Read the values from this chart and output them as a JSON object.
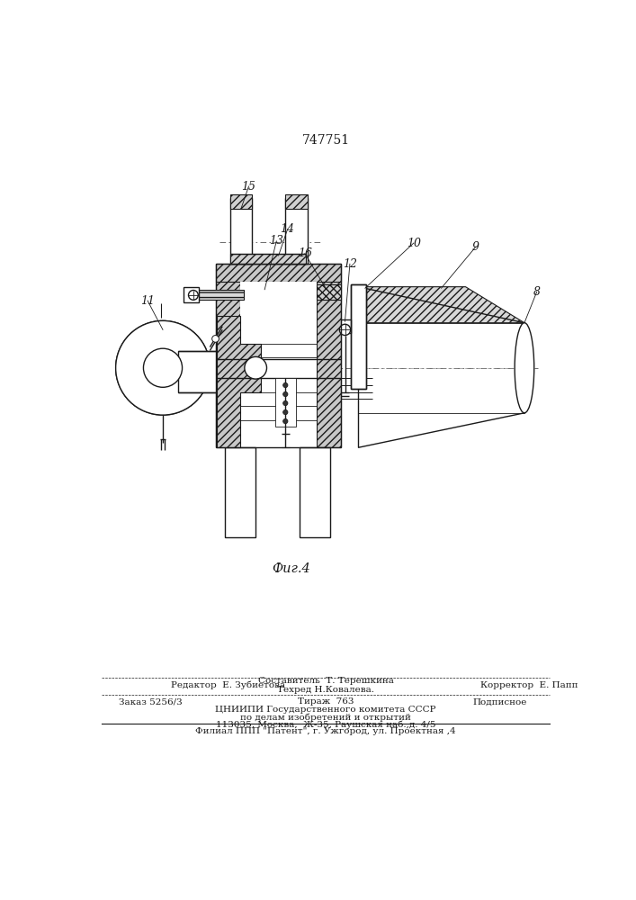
{
  "patent_number": "747751",
  "fig_caption": "Фиг.4",
  "bg_color": "#ffffff",
  "line_color": "#1a1a1a",
  "footer": {
    "editor": "Редактор  Е. Зубиетова",
    "composer": "Составитель  Т. Терешкина",
    "techred": "Техред Н.Ковалева.",
    "corrector": "Корректор  Е. Папп",
    "order": "Заказ 5256/3",
    "tirazh": "Тираж  763",
    "podpisnoe": "Подписное",
    "org1": "ЦНИИПИ Государственного комитета СССР",
    "org2": "по делам изобретений и открытий",
    "org3": "113035, Москва,  Ж-35, Раушская наб.,д. 4/5",
    "filial": "Филиал ППП \"Патент\", г. Ужгород, ул. Проектная ,4"
  }
}
